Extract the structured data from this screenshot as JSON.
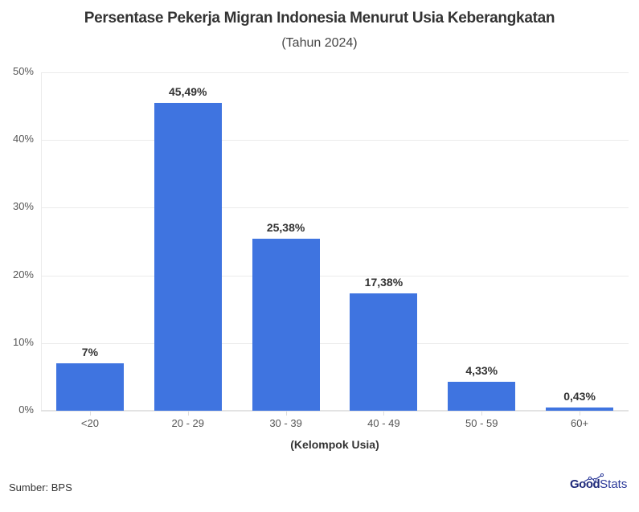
{
  "header": {
    "title": "Persentase Pekerja Migran Indonesia Menurut Usia Keberangkatan",
    "subtitle": "(Tahun 2024)"
  },
  "footer": {
    "source": "Sumber: BPS",
    "logo_bold": "Good",
    "logo_light": "Stats"
  },
  "colors": {
    "bar": "#3f74e0",
    "logo": "#1f2a7a"
  },
  "chart_data": {
    "type": "bar",
    "title": "Persentase Pekerja Migran Indonesia Menurut Usia Keberangkatan",
    "subtitle": "(Tahun 2024)",
    "xlabel": "(Kelompok Usia)",
    "ylabel": "",
    "categories": [
      "<20",
      "20 - 29",
      "30 - 39",
      "40 - 49",
      "50 - 59",
      "60+"
    ],
    "values": [
      7,
      45.49,
      25.38,
      17.38,
      4.33,
      0.43
    ],
    "data_labels": [
      "7%",
      "45,49%",
      "25,38%",
      "17,38%",
      "4,33%",
      "0,43%"
    ],
    "ylim": [
      0,
      50
    ],
    "yticks": [
      "0%",
      "10%",
      "20%",
      "30%",
      "40%",
      "50%"
    ],
    "grid": true,
    "legend": "none",
    "source": "Sumber: BPS"
  }
}
